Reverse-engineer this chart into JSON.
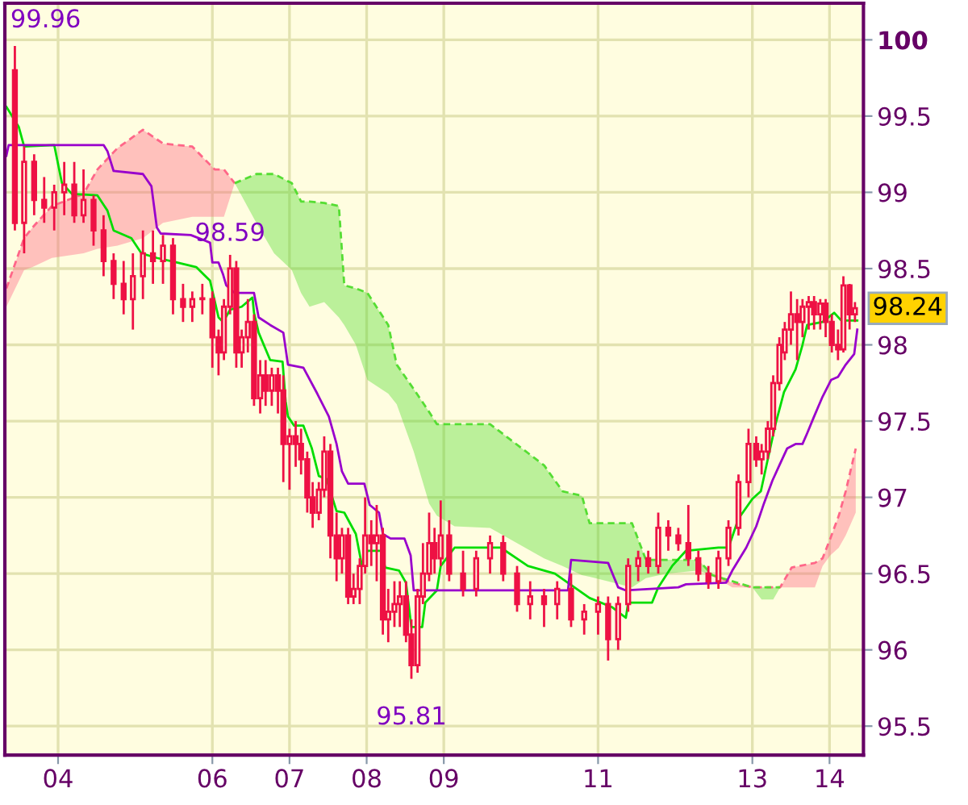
{
  "chart_data": {
    "type": "candlestick",
    "color": "#ee1144",
    "x": [
      3.44,
      3.56,
      3.69,
      3.82,
      3.95,
      4.08,
      4.21,
      4.33,
      4.46,
      4.59,
      4.72,
      4.85,
      4.97,
      5.1,
      5.23,
      5.36,
      5.49,
      5.62,
      5.74,
      5.87,
      6.0,
      6.08,
      6.15,
      6.23,
      6.31,
      6.38,
      6.46,
      6.54,
      6.62,
      6.69,
      6.77,
      6.85,
      6.92,
      7.0,
      7.08,
      7.15,
      7.23,
      7.3,
      7.38,
      7.45,
      7.53,
      7.61,
      7.68,
      7.76,
      7.83,
      7.91,
      7.98,
      8.06,
      8.13,
      8.21,
      8.28,
      8.36,
      8.43,
      8.51,
      8.58,
      8.66,
      8.73,
      8.81,
      8.88,
      8.96,
      9.07,
      9.25,
      9.42,
      9.6,
      9.77,
      9.95,
      10.12,
      10.3,
      10.47,
      10.65,
      10.82,
      11.0,
      11.13,
      11.26,
      11.39,
      11.52,
      11.65,
      11.78,
      11.91,
      12.04,
      12.17,
      12.3,
      12.43,
      12.56,
      12.69,
      12.82,
      12.95,
      13.05,
      13.12,
      13.2,
      13.27,
      13.35,
      13.42,
      13.5,
      13.58,
      13.65,
      13.73,
      13.8,
      13.88,
      13.95,
      14.03,
      14.11,
      14.18,
      14.26,
      14.33
    ],
    "ohlc": [
      [
        99.8,
        99.96,
        98.75,
        98.8
      ],
      [
        98.8,
        99.3,
        98.6,
        99.2
      ],
      [
        99.2,
        99.25,
        98.85,
        98.95
      ],
      [
        98.95,
        99.1,
        98.8,
        98.9
      ],
      [
        98.9,
        99.05,
        98.75,
        99.0
      ],
      [
        99.0,
        99.2,
        98.85,
        99.05
      ],
      [
        99.05,
        99.2,
        98.8,
        98.85
      ],
      [
        98.85,
        99.15,
        98.8,
        98.95
      ],
      [
        98.95,
        98.98,
        98.65,
        98.75
      ],
      [
        98.75,
        98.85,
        98.45,
        98.55
      ],
      [
        98.55,
        98.6,
        98.3,
        98.4
      ],
      [
        98.4,
        98.55,
        98.2,
        98.3
      ],
      [
        98.3,
        98.6,
        98.1,
        98.45
      ],
      [
        98.45,
        98.75,
        98.3,
        98.6
      ],
      [
        98.6,
        98.75,
        98.4,
        98.55
      ],
      [
        98.55,
        98.72,
        98.4,
        98.65
      ],
      [
        98.65,
        98.7,
        98.2,
        98.3
      ],
      [
        98.3,
        98.4,
        98.15,
        98.25
      ],
      [
        98.25,
        98.35,
        98.15,
        98.3
      ],
      [
        98.3,
        98.4,
        98.2,
        98.3
      ],
      [
        98.3,
        98.35,
        97.85,
        98.05
      ],
      [
        98.05,
        98.1,
        97.8,
        97.95
      ],
      [
        97.95,
        98.3,
        97.9,
        98.25
      ],
      [
        98.25,
        98.59,
        98.2,
        98.5
      ],
      [
        98.5,
        98.55,
        97.85,
        97.95
      ],
      [
        97.95,
        98.1,
        97.85,
        98.05
      ],
      [
        98.05,
        98.3,
        97.95,
        98.15
      ],
      [
        98.15,
        98.2,
        97.6,
        97.65
      ],
      [
        97.65,
        97.9,
        97.55,
        97.8
      ],
      [
        97.8,
        97.9,
        97.6,
        97.7
      ],
      [
        97.7,
        97.85,
        97.6,
        97.8
      ],
      [
        97.8,
        97.85,
        97.55,
        97.7
      ],
      [
        97.7,
        97.8,
        97.1,
        97.35
      ],
      [
        97.35,
        97.45,
        97.05,
        97.4
      ],
      [
        97.4,
        97.5,
        97.2,
        97.35
      ],
      [
        97.35,
        97.45,
        97.15,
        97.25
      ],
      [
        97.25,
        97.3,
        96.9,
        97.0
      ],
      [
        97.0,
        97.1,
        96.8,
        96.9
      ],
      [
        96.9,
        97.1,
        96.85,
        97.05
      ],
      [
        97.05,
        97.4,
        97.0,
        97.3
      ],
      [
        97.3,
        97.35,
        96.6,
        96.75
      ],
      [
        96.75,
        96.9,
        96.45,
        96.6
      ],
      [
        96.6,
        96.8,
        96.5,
        96.75
      ],
      [
        96.75,
        96.8,
        96.3,
        96.35
      ],
      [
        96.35,
        96.5,
        96.3,
        96.4
      ],
      [
        96.4,
        96.6,
        96.3,
        96.55
      ],
      [
        96.55,
        97.0,
        96.5,
        96.75
      ],
      [
        96.75,
        96.85,
        96.55,
        96.7
      ],
      [
        96.7,
        96.95,
        96.45,
        96.75
      ],
      [
        96.75,
        96.8,
        96.1,
        96.2
      ],
      [
        96.2,
        96.4,
        96.05,
        96.25
      ],
      [
        96.25,
        96.45,
        96.15,
        96.3
      ],
      [
        96.3,
        96.45,
        96.15,
        96.35
      ],
      [
        96.35,
        96.45,
        96.05,
        96.1
      ],
      [
        96.1,
        96.2,
        95.81,
        95.9
      ],
      [
        95.9,
        96.4,
        95.85,
        96.35
      ],
      [
        96.35,
        96.7,
        96.3,
        96.5
      ],
      [
        96.5,
        96.9,
        96.45,
        96.7
      ],
      [
        96.7,
        96.8,
        96.5,
        96.6
      ],
      [
        96.6,
        96.98,
        96.55,
        96.75
      ],
      [
        96.75,
        96.85,
        96.45,
        96.5
      ],
      [
        96.5,
        96.65,
        96.35,
        96.4
      ],
      [
        96.4,
        96.65,
        96.35,
        96.6
      ],
      [
        96.6,
        96.75,
        96.5,
        96.7
      ],
      [
        96.7,
        96.75,
        96.45,
        96.5
      ],
      [
        96.5,
        96.55,
        96.25,
        96.3
      ],
      [
        96.3,
        96.45,
        96.2,
        96.35
      ],
      [
        96.35,
        96.4,
        96.15,
        96.3
      ],
      [
        96.3,
        96.45,
        96.2,
        96.4
      ],
      [
        96.4,
        96.5,
        96.15,
        96.2
      ],
      [
        96.2,
        96.3,
        96.1,
        96.25
      ],
      [
        96.25,
        96.35,
        96.1,
        96.3
      ],
      [
        96.3,
        96.35,
        95.93,
        96.07
      ],
      [
        96.07,
        96.35,
        96.0,
        96.3
      ],
      [
        96.3,
        96.6,
        96.25,
        96.55
      ],
      [
        96.55,
        96.65,
        96.45,
        96.6
      ],
      [
        96.6,
        96.65,
        96.5,
        96.55
      ],
      [
        96.55,
        96.9,
        96.5,
        96.8
      ],
      [
        96.8,
        96.85,
        96.65,
        96.75
      ],
      [
        96.75,
        96.8,
        96.65,
        96.7
      ],
      [
        96.7,
        96.95,
        96.55,
        96.6
      ],
      [
        96.6,
        96.65,
        96.45,
        96.5
      ],
      [
        96.5,
        96.55,
        96.4,
        96.45
      ],
      [
        96.45,
        96.65,
        96.4,
        96.6
      ],
      [
        96.6,
        96.85,
        96.55,
        96.8
      ],
      [
        96.8,
        97.15,
        96.75,
        97.1
      ],
      [
        97.1,
        97.45,
        97.0,
        97.35
      ],
      [
        97.35,
        97.4,
        97.2,
        97.25
      ],
      [
        97.25,
        97.35,
        97.15,
        97.3
      ],
      [
        97.3,
        97.5,
        97.25,
        97.45
      ],
      [
        97.45,
        97.8,
        97.4,
        97.75
      ],
      [
        97.75,
        98.05,
        97.7,
        98.0
      ],
      [
        97.95,
        98.15,
        97.9,
        98.1
      ],
      [
        98.1,
        98.35,
        98.0,
        98.2
      ],
      [
        98.2,
        98.3,
        97.9,
        98.15
      ],
      [
        98.15,
        98.3,
        98.05,
        98.25
      ],
      [
        98.25,
        98.32,
        98.1,
        98.28
      ],
      [
        98.28,
        98.32,
        98.1,
        98.2
      ],
      [
        98.2,
        98.3,
        98.1,
        98.27
      ],
      [
        98.27,
        98.3,
        98.05,
        98.15
      ],
      [
        98.15,
        98.2,
        97.95,
        98.0
      ],
      [
        98.0,
        98.1,
        97.9,
        97.97
      ],
      [
        97.97,
        98.45,
        97.95,
        98.39
      ],
      [
        98.39,
        98.4,
        98.1,
        98.2
      ],
      [
        98.2,
        98.28,
        98.15,
        98.24
      ]
    ],
    "series": [
      {
        "type": "line",
        "line_style": "dashed",
        "color": "#ff6688",
        "x": [
          3.33,
          3.56,
          3.67,
          3.92,
          4.33,
          4.51,
          4.77,
          5.1,
          5.36,
          5.74,
          6.03,
          6.15,
          6.29,
          9.0,
          12.48,
          12.74,
          13.0,
          13.36,
          13.51,
          13.81,
          13.91,
          14.01,
          14.12,
          14.21,
          14.34
        ],
        "lower": [
          98.25,
          98.49,
          98.51,
          98.57,
          98.6,
          98.63,
          98.65,
          98.7,
          98.8,
          98.84,
          98.84,
          98.84,
          99.06,
          null,
          96.49,
          96.41,
          96.41,
          96.41,
          96.41,
          96.41,
          96.55,
          96.62,
          96.67,
          96.75,
          96.9
        ],
        "upper": [
          98.37,
          98.7,
          98.77,
          98.91,
          98.99,
          99.15,
          99.29,
          99.41,
          99.32,
          99.3,
          99.15,
          99.15,
          99.06,
          null,
          96.49,
          96.44,
          96.41,
          96.41,
          96.54,
          96.57,
          96.6,
          96.73,
          96.88,
          97.04,
          97.32
        ],
        "values": [
          98.37,
          98.7,
          98.77,
          98.91,
          98.99,
          99.15,
          99.29,
          99.41,
          99.32,
          99.3,
          99.15,
          99.15,
          99.06,
          null,
          96.49,
          96.44,
          96.41,
          96.41,
          96.54,
          96.57,
          96.6,
          96.73,
          96.88,
          97.04,
          97.32
        ]
      },
      {
        "type": "line",
        "line_style": "dashed",
        "color": "#55dd33",
        "upper": [
          99.06,
          99.12,
          99.12,
          99.06,
          98.94,
          98.94,
          98.93,
          98.91,
          98.39,
          98.37,
          98.34,
          98.13,
          97.87,
          97.71,
          97.56,
          97.48,
          97.48,
          97.48,
          97.21,
          97.04,
          97.01,
          96.83,
          96.83,
          96.59,
          96.59,
          96.59,
          96.49,
          96.41,
          96.41,
          96.41,
          96.41
        ],
        "x": [
          6.29,
          6.57,
          6.8,
          7.03,
          7.15,
          7.26,
          7.45,
          7.64,
          7.71,
          7.86,
          8.01,
          8.28,
          8.39,
          8.61,
          8.81,
          8.91,
          9.14,
          9.6,
          10.3,
          10.54,
          10.79,
          10.89,
          11.44,
          11.62,
          11.88,
          12.3,
          12.48,
          13.0,
          13.12,
          13.27,
          13.36
        ],
        "lower": [
          99.06,
          98.8,
          98.6,
          98.49,
          98.34,
          98.25,
          98.28,
          98.18,
          98.13,
          98.0,
          97.77,
          97.68,
          97.61,
          97.3,
          96.96,
          96.88,
          96.81,
          96.8,
          96.6,
          96.55,
          96.49,
          96.48,
          96.41,
          96.47,
          96.5,
          96.52,
          96.49,
          96.41,
          96.33,
          96.33,
          96.41
        ],
        "values": [
          99.06,
          99.12,
          99.12,
          99.06,
          98.94,
          98.94,
          98.93,
          98.91,
          98.39,
          98.37,
          98.34,
          98.13,
          97.87,
          97.71,
          97.56,
          97.48,
          97.48,
          97.48,
          97.21,
          97.04,
          97.01,
          96.83,
          96.83,
          96.59,
          96.59,
          96.59,
          96.49,
          96.41,
          96.41,
          96.41,
          96.41
        ]
      },
      {
        "type": "line",
        "color": "#00dd00",
        "x": [
          3.33,
          3.49,
          3.56,
          3.95,
          4.05,
          4.18,
          4.51,
          4.64,
          4.72,
          4.95,
          5.08,
          5.28,
          5.54,
          5.79,
          5.97,
          6.08,
          6.14,
          6.23,
          6.38,
          6.52,
          6.54,
          6.6,
          6.75,
          6.91,
          6.95,
          6.98,
          7.06,
          7.18,
          7.29,
          7.38,
          7.48,
          7.61,
          7.71,
          7.86,
          7.94,
          8.01,
          8.19,
          8.24,
          8.42,
          8.51,
          8.58,
          8.72,
          8.76,
          8.91,
          8.96,
          9.14,
          9.74,
          10.09,
          10.44,
          10.89,
          11.18,
          11.36,
          11.39,
          11.7,
          11.78,
          11.96,
          12.14,
          12.56,
          12.69,
          12.82,
          13.0,
          13.11,
          13.2,
          13.3,
          13.41,
          13.56,
          13.65,
          13.71,
          13.91,
          14.06,
          14.17,
          14.21,
          14.36
        ],
        "values": [
          99.56,
          99.43,
          99.3,
          99.31,
          99.06,
          98.99,
          98.98,
          98.88,
          98.75,
          98.7,
          98.6,
          98.57,
          98.54,
          98.51,
          98.42,
          98.18,
          98.15,
          98.23,
          98.25,
          98.31,
          98.21,
          98.08,
          97.9,
          97.89,
          97.63,
          97.53,
          97.47,
          97.47,
          97.32,
          97.14,
          97.12,
          96.91,
          96.9,
          96.76,
          96.55,
          96.65,
          96.65,
          96.54,
          96.52,
          96.44,
          96.15,
          96.15,
          96.31,
          96.39,
          96.55,
          96.67,
          96.67,
          96.55,
          96.5,
          96.34,
          96.28,
          96.21,
          96.31,
          96.31,
          96.41,
          96.55,
          96.65,
          96.67,
          96.67,
          96.86,
          96.99,
          97.04,
          97.25,
          97.48,
          97.69,
          97.84,
          98.0,
          98.13,
          98.15,
          98.21,
          98.15,
          98.16,
          98.16
        ]
      },
      {
        "type": "line",
        "color": "#9900cc",
        "x": [
          3.33,
          3.36,
          4.59,
          4.64,
          4.72,
          5.1,
          5.21,
          5.28,
          5.33,
          5.72,
          5.97,
          6.0,
          6.08,
          6.14,
          6.18,
          6.29,
          6.54,
          6.6,
          6.75,
          6.92,
          6.98,
          7.18,
          7.36,
          7.51,
          7.61,
          7.68,
          7.76,
          7.97,
          8.04,
          8.16,
          8.21,
          8.31,
          8.49,
          8.57,
          8.61,
          10.61,
          10.65,
          11.13,
          11.26,
          11.36,
          12.04,
          12.14,
          12.66,
          12.74,
          12.92,
          13.05,
          13.15,
          13.26,
          13.35,
          13.45,
          13.56,
          13.65,
          13.71,
          13.8,
          13.91,
          14.02,
          14.11,
          14.21,
          14.32,
          14.36
        ],
        "values": [
          99.24,
          99.31,
          99.31,
          99.27,
          99.14,
          99.12,
          99.04,
          98.77,
          98.73,
          98.72,
          98.67,
          98.54,
          98.54,
          98.46,
          98.39,
          98.34,
          98.34,
          98.18,
          98.13,
          98.08,
          97.87,
          97.85,
          97.68,
          97.53,
          97.35,
          97.17,
          97.09,
          97.09,
          96.95,
          96.9,
          96.76,
          96.73,
          96.73,
          96.62,
          96.39,
          96.39,
          96.59,
          96.57,
          96.41,
          96.39,
          96.41,
          96.43,
          96.44,
          96.52,
          96.67,
          96.81,
          96.96,
          97.11,
          97.21,
          97.32,
          97.35,
          97.35,
          97.42,
          97.53,
          97.66,
          97.77,
          97.79,
          97.87,
          97.94,
          98.1
        ]
      }
    ],
    "xlim": [
      3.31,
      14.44
    ],
    "ylim": [
      95.31,
      100.24
    ],
    "xticks": [
      {
        "value": 4,
        "label": "04"
      },
      {
        "value": 6,
        "label": "06"
      },
      {
        "value": 7,
        "label": "07"
      },
      {
        "value": 8,
        "label": "08"
      },
      {
        "value": 9,
        "label": "09"
      },
      {
        "value": 11,
        "label": "11"
      },
      {
        "value": 13,
        "label": "13"
      },
      {
        "value": 14,
        "label": "14"
      }
    ],
    "yticks": [
      95.5,
      96,
      96.5,
      97,
      97.5,
      98,
      98.5,
      99,
      99.5,
      100
    ],
    "grid": true,
    "annotations": [
      {
        "text": "99.96",
        "x": 3.44,
        "y": 99.96
      },
      {
        "text": "98.59",
        "x": 6.23,
        "y": 98.59
      },
      {
        "text": "95.81",
        "x": 8.58,
        "y": 95.81
      },
      {
        "text": "98.24",
        "x": 14.33,
        "y": 98.24
      }
    ]
  }
}
